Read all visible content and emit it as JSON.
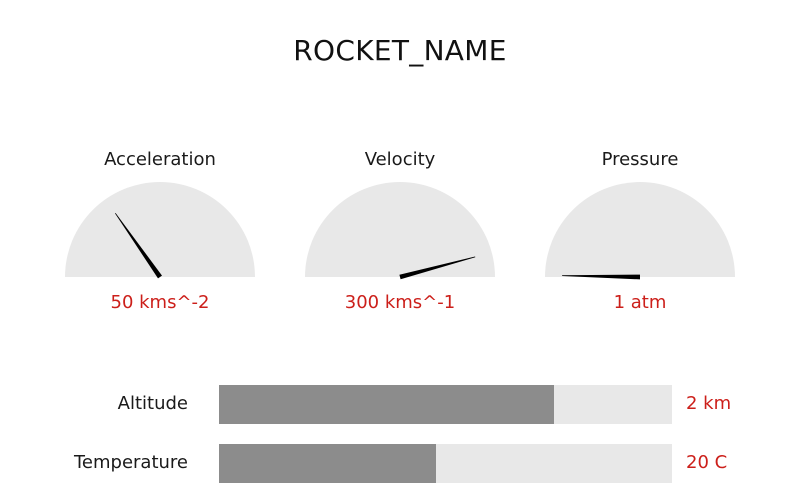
{
  "title": "ROCKET_NAME",
  "gauges": [
    {
      "label": "Acceleration",
      "value_text": "50 kms^-2",
      "needle_angle_deg": 125
    },
    {
      "label": "Velocity",
      "value_text": "300 kms^-1",
      "needle_angle_deg": 15
    },
    {
      "label": "Pressure",
      "value_text": "1 atm",
      "needle_angle_deg": 179
    },
    {
      "face_color": "#e8e8e8",
      "needle_color": "#000000"
    }
  ],
  "bars": [
    {
      "label": "Altitude",
      "value_text": "2 km",
      "fill_fraction": 0.74
    },
    {
      "label": "Temperature",
      "value_text": "20 C",
      "fill_fraction": 0.48
    }
  ],
  "colors": {
    "value_text": "#cc1f1a",
    "bar_track": "#e8e8e8",
    "bar_fill": "#8c8c8c"
  }
}
